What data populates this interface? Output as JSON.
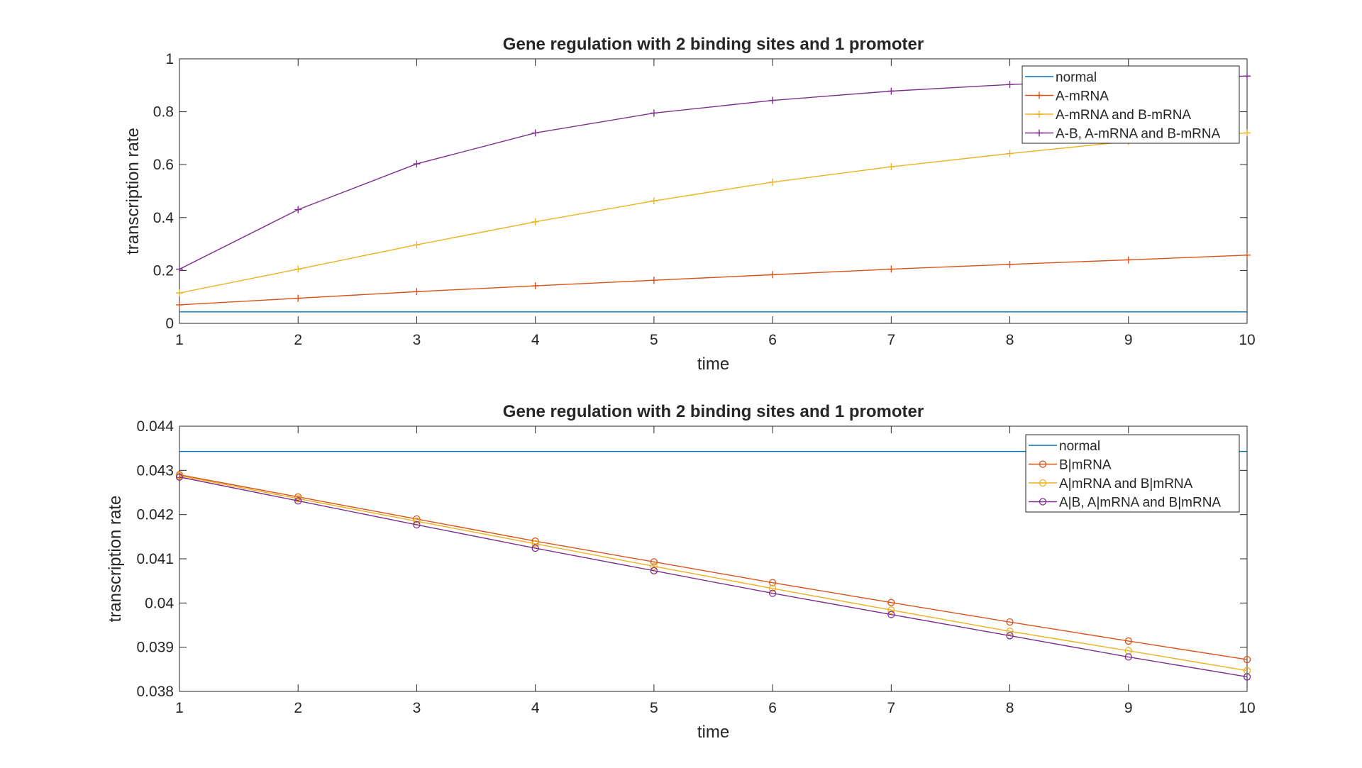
{
  "chart_data": [
    {
      "type": "line",
      "title": "Gene regulation with 2 binding sites and 1 promoter",
      "xlabel": "time",
      "ylabel": "transcription rate",
      "xlim": [
        1,
        10
      ],
      "ylim": [
        0,
        1
      ],
      "xticks": [
        "1",
        "2",
        "3",
        "4",
        "5",
        "6",
        "7",
        "8",
        "9",
        "10"
      ],
      "yticks": [
        "0",
        "0.2",
        "0.4",
        "0.6",
        "0.8",
        "1"
      ],
      "grid": false,
      "legend_position": "top-right",
      "x": [
        1,
        2,
        3,
        4,
        5,
        6,
        7,
        8,
        9,
        10
      ],
      "series": [
        {
          "name": "normal",
          "color": "#0072BD",
          "marker": "none",
          "values": [
            0.0434,
            0.0434,
            0.0434,
            0.0434,
            0.0434,
            0.0434,
            0.0434,
            0.0434,
            0.0434,
            0.0434
          ]
        },
        {
          "name": "A-mRNA",
          "color": "#D95319",
          "marker": "plus",
          "values": [
            0.07,
            0.095,
            0.12,
            0.142,
            0.163,
            0.184,
            0.205,
            0.223,
            0.24,
            0.258
          ]
        },
        {
          "name": "A-mRNA and B-mRNA",
          "color": "#EDB120",
          "marker": "plus",
          "values": [
            0.115,
            0.205,
            0.297,
            0.384,
            0.463,
            0.534,
            0.592,
            0.642,
            0.688,
            0.72
          ]
        },
        {
          "name": "A-B, A-mRNA and B-mRNA",
          "color": "#7E2F8E",
          "marker": "plus",
          "values": [
            0.205,
            0.43,
            0.603,
            0.72,
            0.795,
            0.843,
            0.878,
            0.903,
            0.92,
            0.935
          ]
        }
      ]
    },
    {
      "type": "line",
      "title": "Gene regulation with 2 binding sites and 1 promoter",
      "xlabel": "time",
      "ylabel": "transcription rate",
      "xlim": [
        1,
        10
      ],
      "ylim": [
        0.038,
        0.044
      ],
      "xticks": [
        "1",
        "2",
        "3",
        "4",
        "5",
        "6",
        "7",
        "8",
        "9",
        "10"
      ],
      "yticks": [
        "0.038",
        "0.039",
        "0.04",
        "0.041",
        "0.042",
        "0.043",
        "0.044"
      ],
      "grid": false,
      "legend_position": "top-right",
      "x": [
        1,
        2,
        3,
        4,
        5,
        6,
        7,
        8,
        9,
        10
      ],
      "series": [
        {
          "name": "normal",
          "color": "#0072BD",
          "marker": "none",
          "values": [
            0.04343,
            0.04343,
            0.04343,
            0.04343,
            0.04343,
            0.04343,
            0.04343,
            0.04343,
            0.04343,
            0.04343
          ]
        },
        {
          "name": "B|mRNA",
          "color": "#D95319",
          "marker": "circle",
          "values": [
            0.0429,
            0.0424,
            0.0419,
            0.0414,
            0.04093,
            0.04046,
            0.04001,
            0.03957,
            0.03914,
            0.03872
          ]
        },
        {
          "name": "A|mRNA and B|mRNA",
          "color": "#EDB120",
          "marker": "circle",
          "values": [
            0.04288,
            0.04236,
            0.04185,
            0.04134,
            0.04083,
            0.04033,
            0.03984,
            0.03936,
            0.03892,
            0.03847
          ]
        },
        {
          "name": "A|B, A|mRNA and B|mRNA",
          "color": "#7E2F8E",
          "marker": "circle",
          "values": [
            0.04285,
            0.04231,
            0.04177,
            0.04124,
            0.04073,
            0.04022,
            0.03974,
            0.03926,
            0.03878,
            0.03833
          ]
        }
      ]
    }
  ]
}
